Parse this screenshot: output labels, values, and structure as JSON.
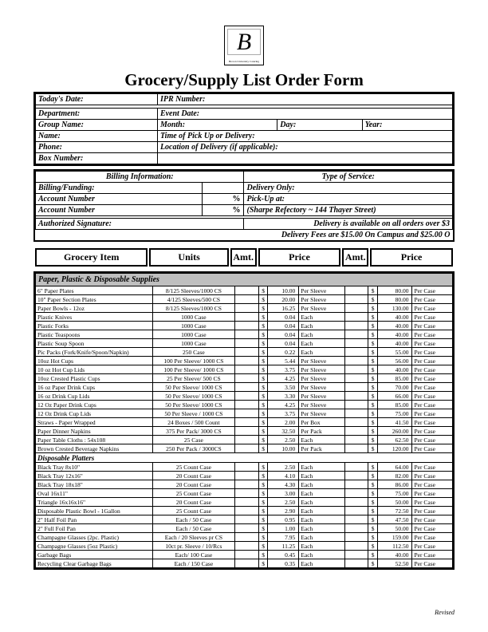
{
  "logo_letter": "B",
  "logo_sub": "Brown University Catering",
  "title": "Grocery/Supply List Order Form",
  "hdr": {
    "today": "Today's Date:",
    "ipr": "IPR Number:",
    "dept": "Department:",
    "event_date": "Event Date:",
    "group": "Group Name:",
    "month": "Month:",
    "day": "Day:",
    "year": "Year:",
    "name": "Name:",
    "pickup_time": "Time of Pick Up or Delivery:",
    "phone": "Phone:",
    "loc": "Location of Delivery (if applicable):",
    "box": "Box Number:"
  },
  "billing_title": "Billing Information:",
  "service_title": "Type of Service:",
  "billing_funding": "Billing/Funding:",
  "delivery_only": "Delivery Only:",
  "acct": "Account Number",
  "pct": "%",
  "pickup_at": "Pick-Up at:",
  "sharpe": "(Sharpe Refectory ~ 144 Thayer Street)",
  "auth_sig": "Authorized Signature:",
  "deliv_note1": "Delivery is available on all orders over $3",
  "deliv_note2": "Delivery Fees are $15.00 On Campus and $25.00 O",
  "col_item": "Grocery Item",
  "col_units": "Units",
  "col_amt": "Amt.",
  "col_price": "Price",
  "cat1": "Paper, Plastic & Disposable Supplies",
  "subcat1": "Disposable Platters",
  "rows": [
    {
      "n": "6\" Paper Plates",
      "u": "8/125 Sleeves/1000 CS",
      "p1": "10.00",
      "per1": "Per Sleeve",
      "p2": "80.00",
      "per2": "Per Case"
    },
    {
      "n": "10\" Paper Section Plates",
      "u": "4/125 Sleeves/500 CS",
      "p1": "20.00",
      "per1": "Per Sleeve",
      "p2": "80.00",
      "per2": "Per Case"
    },
    {
      "n": "Paper Bowls - 12oz",
      "u": "8/125 Sleeves/1000 CS",
      "p1": "16.25",
      "per1": "Per Sleeve",
      "p2": "130.00",
      "per2": "Per Case"
    },
    {
      "n": "Plastic Knives",
      "u": "1000 Case",
      "p1": "0.04",
      "per1": "Each",
      "p2": "40.00",
      "per2": "Per Case"
    },
    {
      "n": "Plastic Forks",
      "u": "1000 Case",
      "p1": "0.04",
      "per1": "Each",
      "p2": "40.00",
      "per2": "Per Case"
    },
    {
      "n": "Plastic Teaspoons",
      "u": "1000 Case",
      "p1": "0.04",
      "per1": "Each",
      "p2": "40.00",
      "per2": "Per Case"
    },
    {
      "n": "Plastic Soup Spoon",
      "u": "1000 Case",
      "p1": "0.04",
      "per1": "Each",
      "p2": "40.00",
      "per2": "Per Case"
    },
    {
      "n": "Pic Packs (Fork/Knife/Spoon/Napkin)",
      "u": "250 Case",
      "p1": "0.22",
      "per1": "Each",
      "p2": "55.00",
      "per2": "Per Case"
    },
    {
      "n": "10oz Hot Cups",
      "u": "100 Per Sleeve/ 1000 CS",
      "p1": "5.44",
      "per1": "Per Sleeve",
      "p2": "56.00",
      "per2": "Per Case"
    },
    {
      "n": "10 oz Hot Cup Lids",
      "u": "100 Per Sleeve/ 1000 CS",
      "p1": "3.75",
      "per1": "Per Sleeve",
      "p2": "40.00",
      "per2": "Per Case"
    },
    {
      "n": "10oz Crested Plastic Cups",
      "u": "25 Per Sleeve/ 500 CS",
      "p1": "4.25",
      "per1": "Per Sleeve",
      "p2": "85.00",
      "per2": "Per Case"
    },
    {
      "n": "16 oz Paper Drink Cups",
      "u": "50 Per Sleeve/ 1000 CS",
      "p1": "3.50",
      "per1": "Per Sleeve",
      "p2": "70.00",
      "per2": "Per Case"
    },
    {
      "n": "16 oz Drink Cup Lids",
      "u": "50 Per Sleeve/ 1000 CS",
      "p1": "3.30",
      "per1": "Per Sleeve",
      "p2": "66.00",
      "per2": "Per Case"
    },
    {
      "n": "12 Oz Paper Drink Cups",
      "u": "50 Per Sleeve/ 1000 CS",
      "p1": "4.25",
      "per1": "Per Sleeve",
      "p2": "85.00",
      "per2": "Per Case"
    },
    {
      "n": "12 Oz Drink Cup Lids",
      "u": "50 Per Sleeve / 1000 CS",
      "p1": "3.75",
      "per1": "Per Sleeve",
      "p2": "75.00",
      "per2": "Per Case"
    },
    {
      "n": "Straws - Paper Wrapped",
      "u": "24 Boxes / 500 Count",
      "p1": "2.00",
      "per1": "Per Box",
      "p2": "41.50",
      "per2": "Per Case"
    },
    {
      "n": "Paper Dinner Napkins",
      "u": "375 Per Pack/ 3000 CS",
      "p1": "32.50",
      "per1": "Per Pack",
      "p2": "260.00",
      "per2": "Per Case"
    },
    {
      "n": "Paper Table Cloths : 54x108",
      "u": "25 Case",
      "p1": "2.50",
      "per1": "Each",
      "p2": "62.50",
      "per2": "Per Case"
    },
    {
      "n": "Brown Crested Beverage Napkins",
      "u": "250 Per Pack / 3000CS",
      "p1": "10.00",
      "per1": "Per Pack",
      "p2": "120.00",
      "per2": "Per Case"
    }
  ],
  "rows2": [
    {
      "n": "Black Tray 8x10\"",
      "u": "25 Count Case",
      "p1": "2.50",
      "per1": "Each",
      "p2": "64.00",
      "per2": "Per Case"
    },
    {
      "n": "Black Tray 12x16\"",
      "u": "20 Count Case",
      "p1": "4.10",
      "per1": "Each",
      "p2": "82.00",
      "per2": "Per Case"
    },
    {
      "n": "Black Tray 18x18\"",
      "u": "20 Count Case",
      "p1": "4.30",
      "per1": "Each",
      "p2": "86.00",
      "per2": "Per Case"
    },
    {
      "n": "Oval 16x11\"",
      "u": "25 Count Case",
      "p1": "3.00",
      "per1": "Each",
      "p2": "75.00",
      "per2": "Per Case"
    },
    {
      "n": "Triangle 16x16x16\"",
      "u": "20 Count Case",
      "p1": "2.50",
      "per1": "Each",
      "p2": "50.00",
      "per2": "Per Case"
    },
    {
      "n": "Disposable Plastic Bowl - 1Gallon",
      "u": "25 Count Case",
      "p1": "2.90",
      "per1": "Each",
      "p2": "72.50",
      "per2": "Per Case"
    },
    {
      "n": "2\" Half Foil Pan",
      "u": "Each / 50 Case",
      "p1": "0.95",
      "per1": "Each",
      "p2": "47.50",
      "per2": "Per Case"
    },
    {
      "n": "2\" Full Foil Pan",
      "u": "Each / 50 Case",
      "p1": "1.00",
      "per1": "Each",
      "p2": "50.00",
      "per2": "Per Case"
    },
    {
      "n": "Champagne Glasses (2pc. Plastic)",
      "u": "Each / 20 Sleeves pr CS",
      "p1": "7.95",
      "per1": "Each",
      "p2": "159.00",
      "per2": "Per Case"
    },
    {
      "n": "Champagne Glasses (5oz Plastic)",
      "u": "10ct pr. Sleeve / 10/Rcs",
      "p1": "11.25",
      "per1": "Each",
      "p2": "112.50",
      "per2": "Per Case"
    },
    {
      "n": "Garbage Bags",
      "u": "Each/ 100 Case",
      "p1": "0.45",
      "per1": "Each",
      "p2": "40.00",
      "per2": "Per Case"
    },
    {
      "n": "Recycling Clear Garbage Bags",
      "u": "Each / 150 Case",
      "p1": "0.35",
      "per1": "Each",
      "p2": "52.50",
      "per2": "Per Case"
    }
  ],
  "dol": "$",
  "revised": "Revised"
}
